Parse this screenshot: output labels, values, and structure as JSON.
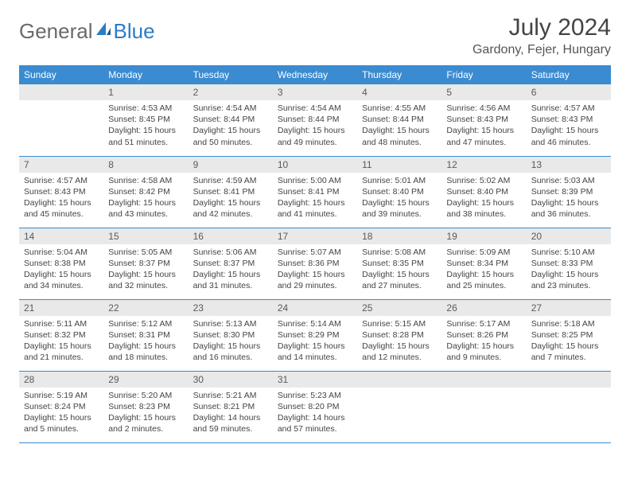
{
  "logo": {
    "general": "General",
    "blue": "Blue"
  },
  "title": "July 2024",
  "location": "Gardony, Fejer, Hungary",
  "colors": {
    "header_bg": "#3a8bd0",
    "header_text": "#ffffff",
    "daynum_bg": "#e9e9e9",
    "daynum_text": "#5a5a5a",
    "body_text": "#444444",
    "logo_gray": "#6a6a6a",
    "logo_blue": "#2c7cc4",
    "border": "#3a8bd0"
  },
  "days_of_week": [
    "Sunday",
    "Monday",
    "Tuesday",
    "Wednesday",
    "Thursday",
    "Friday",
    "Saturday"
  ],
  "weeks": [
    [
      {
        "num": "",
        "sunrise": "",
        "sunset": "",
        "daylight1": "",
        "daylight2": ""
      },
      {
        "num": "1",
        "sunrise": "Sunrise: 4:53 AM",
        "sunset": "Sunset: 8:45 PM",
        "daylight1": "Daylight: 15 hours",
        "daylight2": "and 51 minutes."
      },
      {
        "num": "2",
        "sunrise": "Sunrise: 4:54 AM",
        "sunset": "Sunset: 8:44 PM",
        "daylight1": "Daylight: 15 hours",
        "daylight2": "and 50 minutes."
      },
      {
        "num": "3",
        "sunrise": "Sunrise: 4:54 AM",
        "sunset": "Sunset: 8:44 PM",
        "daylight1": "Daylight: 15 hours",
        "daylight2": "and 49 minutes."
      },
      {
        "num": "4",
        "sunrise": "Sunrise: 4:55 AM",
        "sunset": "Sunset: 8:44 PM",
        "daylight1": "Daylight: 15 hours",
        "daylight2": "and 48 minutes."
      },
      {
        "num": "5",
        "sunrise": "Sunrise: 4:56 AM",
        "sunset": "Sunset: 8:43 PM",
        "daylight1": "Daylight: 15 hours",
        "daylight2": "and 47 minutes."
      },
      {
        "num": "6",
        "sunrise": "Sunrise: 4:57 AM",
        "sunset": "Sunset: 8:43 PM",
        "daylight1": "Daylight: 15 hours",
        "daylight2": "and 46 minutes."
      }
    ],
    [
      {
        "num": "7",
        "sunrise": "Sunrise: 4:57 AM",
        "sunset": "Sunset: 8:43 PM",
        "daylight1": "Daylight: 15 hours",
        "daylight2": "and 45 minutes."
      },
      {
        "num": "8",
        "sunrise": "Sunrise: 4:58 AM",
        "sunset": "Sunset: 8:42 PM",
        "daylight1": "Daylight: 15 hours",
        "daylight2": "and 43 minutes."
      },
      {
        "num": "9",
        "sunrise": "Sunrise: 4:59 AM",
        "sunset": "Sunset: 8:41 PM",
        "daylight1": "Daylight: 15 hours",
        "daylight2": "and 42 minutes."
      },
      {
        "num": "10",
        "sunrise": "Sunrise: 5:00 AM",
        "sunset": "Sunset: 8:41 PM",
        "daylight1": "Daylight: 15 hours",
        "daylight2": "and 41 minutes."
      },
      {
        "num": "11",
        "sunrise": "Sunrise: 5:01 AM",
        "sunset": "Sunset: 8:40 PM",
        "daylight1": "Daylight: 15 hours",
        "daylight2": "and 39 minutes."
      },
      {
        "num": "12",
        "sunrise": "Sunrise: 5:02 AM",
        "sunset": "Sunset: 8:40 PM",
        "daylight1": "Daylight: 15 hours",
        "daylight2": "and 38 minutes."
      },
      {
        "num": "13",
        "sunrise": "Sunrise: 5:03 AM",
        "sunset": "Sunset: 8:39 PM",
        "daylight1": "Daylight: 15 hours",
        "daylight2": "and 36 minutes."
      }
    ],
    [
      {
        "num": "14",
        "sunrise": "Sunrise: 5:04 AM",
        "sunset": "Sunset: 8:38 PM",
        "daylight1": "Daylight: 15 hours",
        "daylight2": "and 34 minutes."
      },
      {
        "num": "15",
        "sunrise": "Sunrise: 5:05 AM",
        "sunset": "Sunset: 8:37 PM",
        "daylight1": "Daylight: 15 hours",
        "daylight2": "and 32 minutes."
      },
      {
        "num": "16",
        "sunrise": "Sunrise: 5:06 AM",
        "sunset": "Sunset: 8:37 PM",
        "daylight1": "Daylight: 15 hours",
        "daylight2": "and 31 minutes."
      },
      {
        "num": "17",
        "sunrise": "Sunrise: 5:07 AM",
        "sunset": "Sunset: 8:36 PM",
        "daylight1": "Daylight: 15 hours",
        "daylight2": "and 29 minutes."
      },
      {
        "num": "18",
        "sunrise": "Sunrise: 5:08 AM",
        "sunset": "Sunset: 8:35 PM",
        "daylight1": "Daylight: 15 hours",
        "daylight2": "and 27 minutes."
      },
      {
        "num": "19",
        "sunrise": "Sunrise: 5:09 AM",
        "sunset": "Sunset: 8:34 PM",
        "daylight1": "Daylight: 15 hours",
        "daylight2": "and 25 minutes."
      },
      {
        "num": "20",
        "sunrise": "Sunrise: 5:10 AM",
        "sunset": "Sunset: 8:33 PM",
        "daylight1": "Daylight: 15 hours",
        "daylight2": "and 23 minutes."
      }
    ],
    [
      {
        "num": "21",
        "sunrise": "Sunrise: 5:11 AM",
        "sunset": "Sunset: 8:32 PM",
        "daylight1": "Daylight: 15 hours",
        "daylight2": "and 21 minutes."
      },
      {
        "num": "22",
        "sunrise": "Sunrise: 5:12 AM",
        "sunset": "Sunset: 8:31 PM",
        "daylight1": "Daylight: 15 hours",
        "daylight2": "and 18 minutes."
      },
      {
        "num": "23",
        "sunrise": "Sunrise: 5:13 AM",
        "sunset": "Sunset: 8:30 PM",
        "daylight1": "Daylight: 15 hours",
        "daylight2": "and 16 minutes."
      },
      {
        "num": "24",
        "sunrise": "Sunrise: 5:14 AM",
        "sunset": "Sunset: 8:29 PM",
        "daylight1": "Daylight: 15 hours",
        "daylight2": "and 14 minutes."
      },
      {
        "num": "25",
        "sunrise": "Sunrise: 5:15 AM",
        "sunset": "Sunset: 8:28 PM",
        "daylight1": "Daylight: 15 hours",
        "daylight2": "and 12 minutes."
      },
      {
        "num": "26",
        "sunrise": "Sunrise: 5:17 AM",
        "sunset": "Sunset: 8:26 PM",
        "daylight1": "Daylight: 15 hours",
        "daylight2": "and 9 minutes."
      },
      {
        "num": "27",
        "sunrise": "Sunrise: 5:18 AM",
        "sunset": "Sunset: 8:25 PM",
        "daylight1": "Daylight: 15 hours",
        "daylight2": "and 7 minutes."
      }
    ],
    [
      {
        "num": "28",
        "sunrise": "Sunrise: 5:19 AM",
        "sunset": "Sunset: 8:24 PM",
        "daylight1": "Daylight: 15 hours",
        "daylight2": "and 5 minutes."
      },
      {
        "num": "29",
        "sunrise": "Sunrise: 5:20 AM",
        "sunset": "Sunset: 8:23 PM",
        "daylight1": "Daylight: 15 hours",
        "daylight2": "and 2 minutes."
      },
      {
        "num": "30",
        "sunrise": "Sunrise: 5:21 AM",
        "sunset": "Sunset: 8:21 PM",
        "daylight1": "Daylight: 14 hours",
        "daylight2": "and 59 minutes."
      },
      {
        "num": "31",
        "sunrise": "Sunrise: 5:23 AM",
        "sunset": "Sunset: 8:20 PM",
        "daylight1": "Daylight: 14 hours",
        "daylight2": "and 57 minutes."
      },
      {
        "num": "",
        "sunrise": "",
        "sunset": "",
        "daylight1": "",
        "daylight2": ""
      },
      {
        "num": "",
        "sunrise": "",
        "sunset": "",
        "daylight1": "",
        "daylight2": ""
      },
      {
        "num": "",
        "sunrise": "",
        "sunset": "",
        "daylight1": "",
        "daylight2": ""
      }
    ]
  ]
}
